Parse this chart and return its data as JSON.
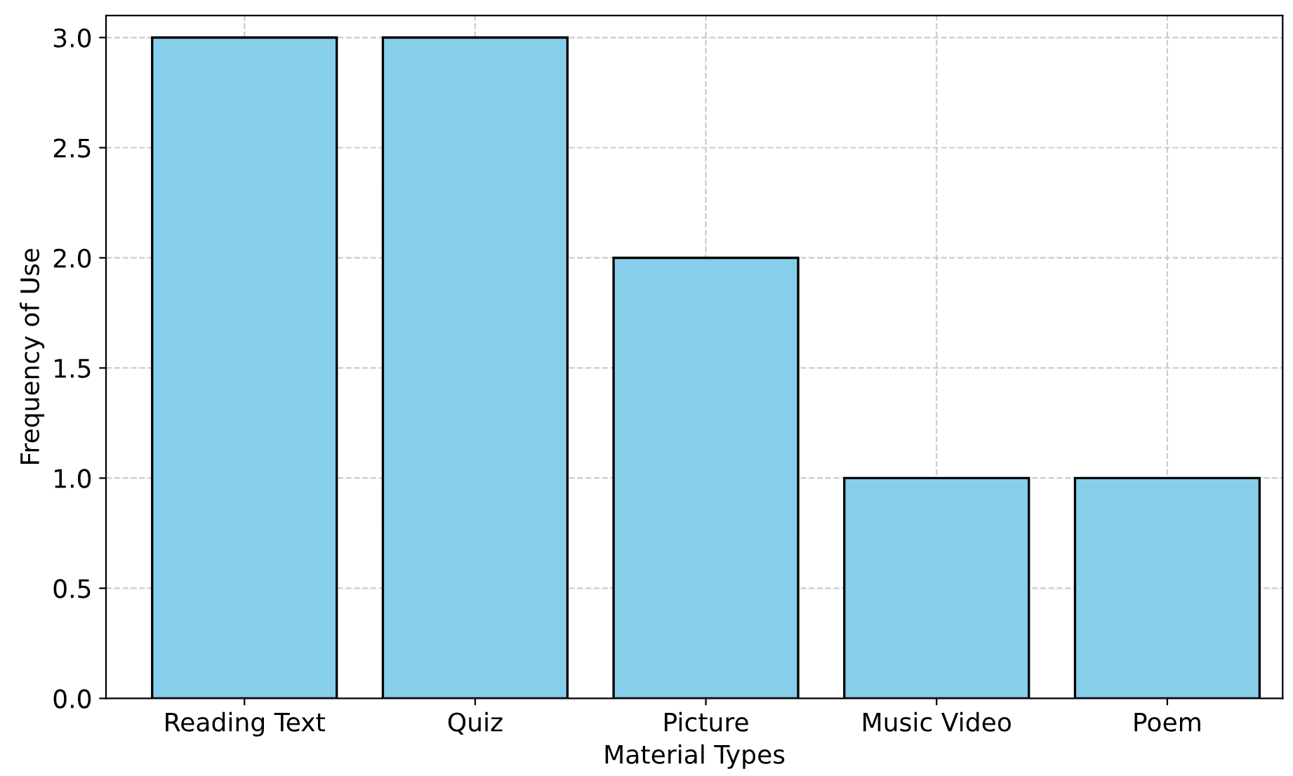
{
  "chart_data": {
    "type": "bar",
    "xlabel": "Material Types",
    "ylabel": "Frequency of Use",
    "categories": [
      "Reading Text",
      "Quiz",
      "Picture",
      "Music Video",
      "Poem"
    ],
    "values": [
      3,
      3,
      2,
      1,
      1
    ],
    "color": "#87ceeb",
    "ylim": [
      0,
      3.1
    ],
    "yticks": [
      {
        "value": 0,
        "label": "0.0"
      },
      {
        "value": 0.5,
        "label": "0.5"
      },
      {
        "value": 1,
        "label": "1.0"
      },
      {
        "value": 1.5,
        "label": "1.5"
      },
      {
        "value": 2,
        "label": "2.0"
      },
      {
        "value": 2.5,
        "label": "2.5"
      },
      {
        "value": 3,
        "label": "3.0"
      }
    ],
    "grid": true,
    "line_style": "dashed"
  }
}
